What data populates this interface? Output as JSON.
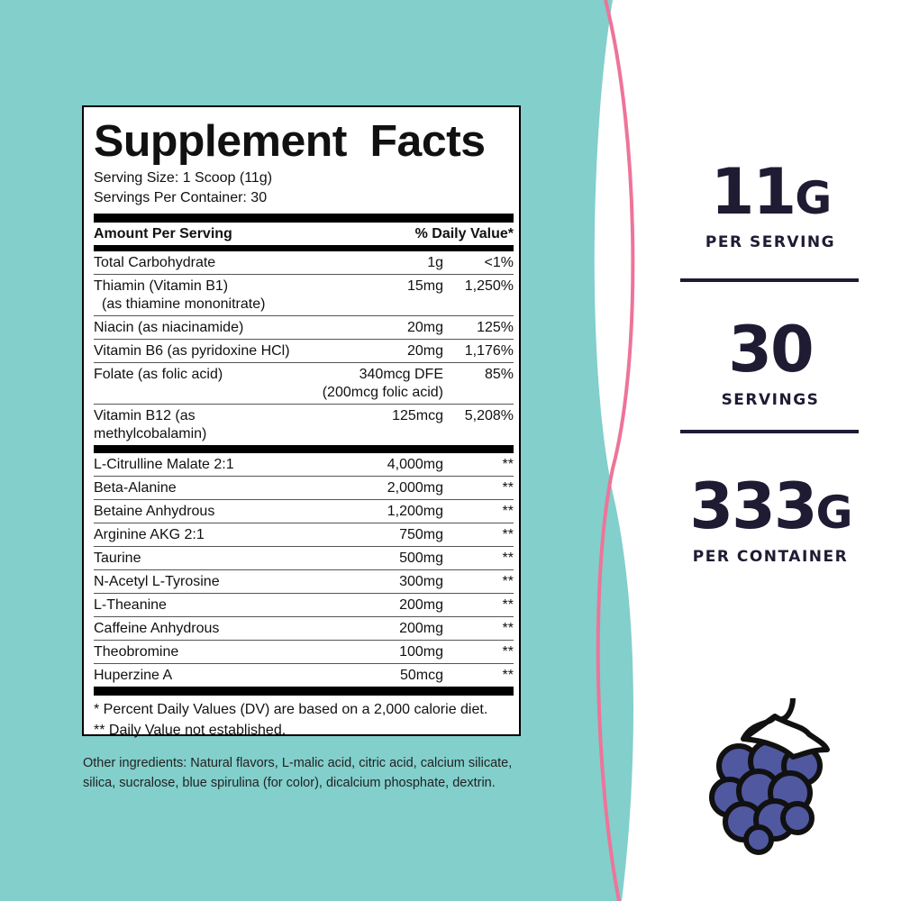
{
  "colors": {
    "teal": "#82cfcc",
    "pink": "#ee7499",
    "navy": "#1f1b33",
    "berry": "#5058a0"
  },
  "label": {
    "title": "Supplement Facts",
    "serving_size": "Serving Size: 1 Scoop (11g)",
    "servings_per_container": "Servings Per Container: 30",
    "header": {
      "amount": "Amount Per Serving",
      "dv": "% Daily Value*"
    },
    "vitamins": [
      {
        "name": "Total Carbohydrate",
        "amount": "1g",
        "dv": "<1%"
      },
      {
        "name": "Thiamin (Vitamin B1)",
        "sub": "(as thiamine mononitrate)",
        "amount": "15mg",
        "dv": "1,250%"
      },
      {
        "name": "Niacin (as niacinamide)",
        "amount": "20mg",
        "dv": "125%"
      },
      {
        "name": "Vitamin B6 (as pyridoxine HCl)",
        "amount": "20mg",
        "dv": "1,176%"
      },
      {
        "name": "Folate (as folic acid)",
        "amount": "340mcg DFE",
        "amount_sub": "(200mcg folic acid)",
        "dv": "85%"
      },
      {
        "name": "Vitamin B12 (as methylcobalamin)",
        "amount": "125mcg",
        "dv": "5,208%"
      }
    ],
    "actives": [
      {
        "name": "L-Citrulline Malate 2:1",
        "amount": "4,000mg",
        "dv": "**"
      },
      {
        "name": "Beta-Alanine",
        "amount": "2,000mg",
        "dv": "**"
      },
      {
        "name": "Betaine Anhydrous",
        "amount": "1,200mg",
        "dv": "**"
      },
      {
        "name": "Arginine AKG 2:1",
        "amount": "750mg",
        "dv": "**"
      },
      {
        "name": "Taurine",
        "amount": "500mg",
        "dv": "**"
      },
      {
        "name": "N-Acetyl L-Tyrosine",
        "amount": "300mg",
        "dv": "**"
      },
      {
        "name": "L-Theanine",
        "amount": "200mg",
        "dv": "**"
      },
      {
        "name": "Caffeine Anhydrous",
        "amount": "200mg",
        "dv": "**"
      },
      {
        "name": "Theobromine",
        "amount": "100mg",
        "dv": "**"
      },
      {
        "name": "Huperzine A",
        "amount": "50mcg",
        "dv": "**"
      }
    ],
    "footnote1": "* Percent Daily Values (DV) are based on a 2,000 calorie diet.",
    "footnote2": "** Daily Value not established."
  },
  "other_ingredients": "Other ingredients: Natural flavors, L-malic acid, citric acid, calcium silicate, silica, sucralose, blue spirulina (for color), dicalcium phosphate, dextrin.",
  "stats": [
    {
      "value": "11",
      "unit": "G",
      "caption": "PER SERVING"
    },
    {
      "value": "30",
      "unit": "",
      "caption": "SERVINGS"
    },
    {
      "value": "333",
      "unit": "G",
      "caption": "PER CONTAINER"
    }
  ],
  "icon": "raspberry-icon"
}
